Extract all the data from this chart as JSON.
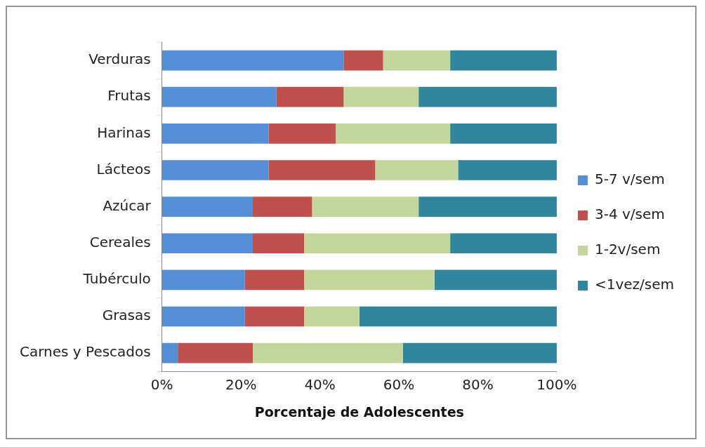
{
  "chart_data": {
    "type": "bar",
    "orientation": "horizontal",
    "stacked": true,
    "xlabel": "Porcentaje de Adolescentes",
    "categories": [
      "Verduras",
      "Frutas",
      "Harinas",
      "Lácteos",
      "Azúcar",
      "Cereales",
      "Tubérculo",
      "Grasas",
      "Carnes y Pescados"
    ],
    "series": [
      {
        "name": "5-7 v/sem",
        "color": "#558ed5",
        "values": [
          46,
          29,
          27,
          27,
          23,
          23,
          21,
          21,
          4
        ]
      },
      {
        "name": "3-4 v/sem",
        "color": "#c0504d",
        "values": [
          10,
          17,
          17,
          27,
          15,
          13,
          15,
          15,
          19
        ]
      },
      {
        "name": "1-2v/sem",
        "color": "#c3d69b",
        "values": [
          17,
          19,
          29,
          21,
          27,
          37,
          33,
          14,
          38
        ]
      },
      {
        "name": "<1vez/sem",
        "color": "#31859c",
        "values": [
          27,
          35,
          27,
          25,
          35,
          27,
          31,
          50,
          39
        ]
      }
    ],
    "xlim": [
      0,
      100
    ],
    "xticks": [
      {
        "value": 0,
        "label": "0%"
      },
      {
        "value": 20,
        "label": "20%"
      },
      {
        "value": 40,
        "label": "40%"
      },
      {
        "value": 60,
        "label": "60%"
      },
      {
        "value": 80,
        "label": "80%"
      },
      {
        "value": 100,
        "label": "100%"
      }
    ],
    "grid": false,
    "legend": "right"
  }
}
